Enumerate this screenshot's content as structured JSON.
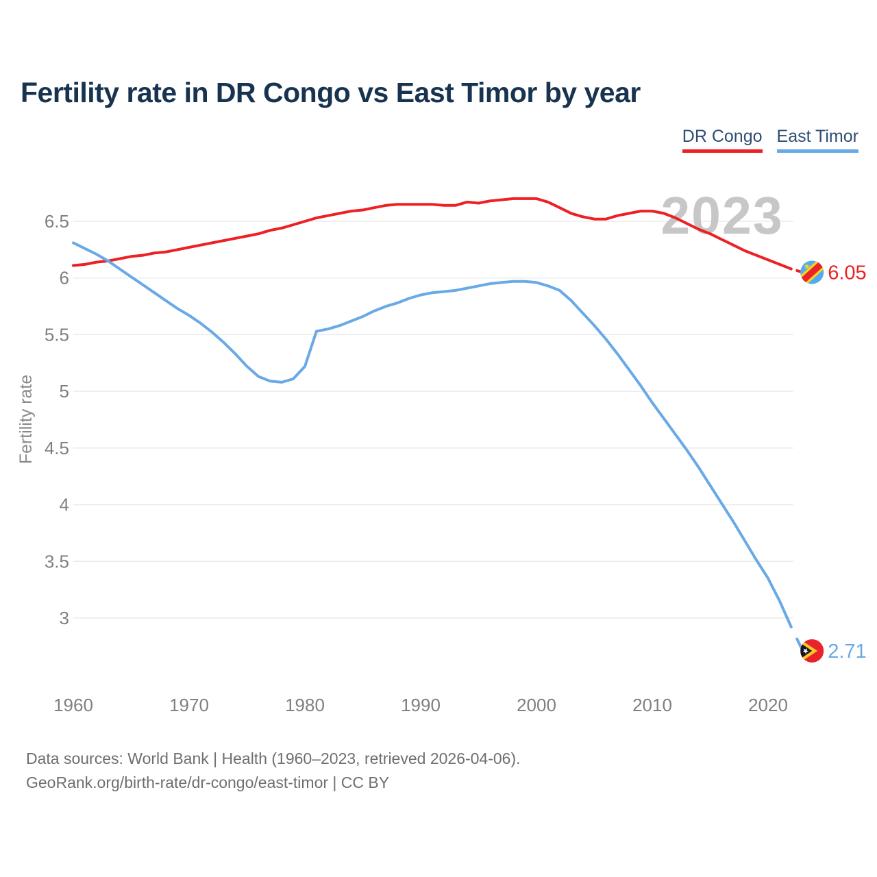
{
  "header": {
    "title": "Fertility rate in DR Congo vs East Timor by year"
  },
  "legend": {
    "items": [
      {
        "label": "DR Congo",
        "color": "#ed2024"
      },
      {
        "label": "East Timor",
        "color": "#68a9e6"
      }
    ]
  },
  "watermark": {
    "text": "2023",
    "color": "#c7c7c7"
  },
  "chart_data": {
    "type": "line",
    "title": "Fertility rate in DR Congo vs East Timor by year",
    "xlabel": "",
    "ylabel": "Fertility rate",
    "x_ticks": [
      1960,
      1970,
      1980,
      1990,
      2000,
      2010,
      2020
    ],
    "y_ticks": [
      {
        "label": "6.5",
        "value": 6.5
      },
      {
        "label": "6",
        "value": 6.0
      },
      {
        "label": "5.5",
        "value": 5.5
      },
      {
        "label": "5",
        "value": 5.0
      },
      {
        "label": "4.5",
        "value": 4.5
      },
      {
        "label": "4",
        "value": 4.0
      },
      {
        "label": "3.5",
        "value": 3.5
      },
      {
        "label": "3",
        "value": 3.0
      }
    ],
    "xlim": [
      1960,
      2023
    ],
    "ylim": [
      2.55,
      6.85
    ],
    "grid": true,
    "years_start": 1960,
    "series": [
      {
        "name": "DR Congo",
        "color": "#ed2024",
        "end_label": "6.05",
        "flag": "dr-congo",
        "values": [
          6.11,
          6.12,
          6.14,
          6.15,
          6.17,
          6.19,
          6.2,
          6.22,
          6.23,
          6.25,
          6.27,
          6.29,
          6.31,
          6.33,
          6.35,
          6.37,
          6.39,
          6.42,
          6.44,
          6.47,
          6.5,
          6.53,
          6.55,
          6.57,
          6.59,
          6.6,
          6.62,
          6.64,
          6.65,
          6.65,
          6.65,
          6.65,
          6.64,
          6.64,
          6.67,
          6.66,
          6.68,
          6.69,
          6.7,
          6.7,
          6.7,
          6.67,
          6.62,
          6.57,
          6.54,
          6.52,
          6.52,
          6.55,
          6.57,
          6.59,
          6.59,
          6.57,
          6.53,
          6.48,
          6.43,
          6.39,
          6.34,
          6.29,
          6.24,
          6.2,
          6.16,
          6.12,
          6.08,
          6.05
        ]
      },
      {
        "name": "East Timor",
        "color": "#68a9e6",
        "end_label": "2.71",
        "flag": "east-timor",
        "values": [
          6.31,
          6.26,
          6.21,
          6.15,
          6.08,
          6.01,
          5.94,
          5.87,
          5.8,
          5.73,
          5.67,
          5.6,
          5.52,
          5.43,
          5.33,
          5.22,
          5.13,
          5.09,
          5.08,
          5.11,
          5.22,
          5.53,
          5.55,
          5.58,
          5.62,
          5.66,
          5.71,
          5.75,
          5.78,
          5.82,
          5.85,
          5.87,
          5.88,
          5.89,
          5.91,
          5.93,
          5.95,
          5.96,
          5.97,
          5.97,
          5.96,
          5.93,
          5.89,
          5.8,
          5.69,
          5.58,
          5.46,
          5.33,
          5.19,
          5.05,
          4.9,
          4.76,
          4.62,
          4.48,
          4.33,
          4.17,
          4.01,
          3.85,
          3.68,
          3.51,
          3.35,
          3.15,
          2.92,
          2.71
        ]
      }
    ]
  },
  "footer": {
    "line1": "Data sources: World Bank | Health (1960–2023, retrieved 2026-04-06).",
    "line2": "GeoRank.org/birth-rate/dr-congo/east-timor | CC BY"
  }
}
